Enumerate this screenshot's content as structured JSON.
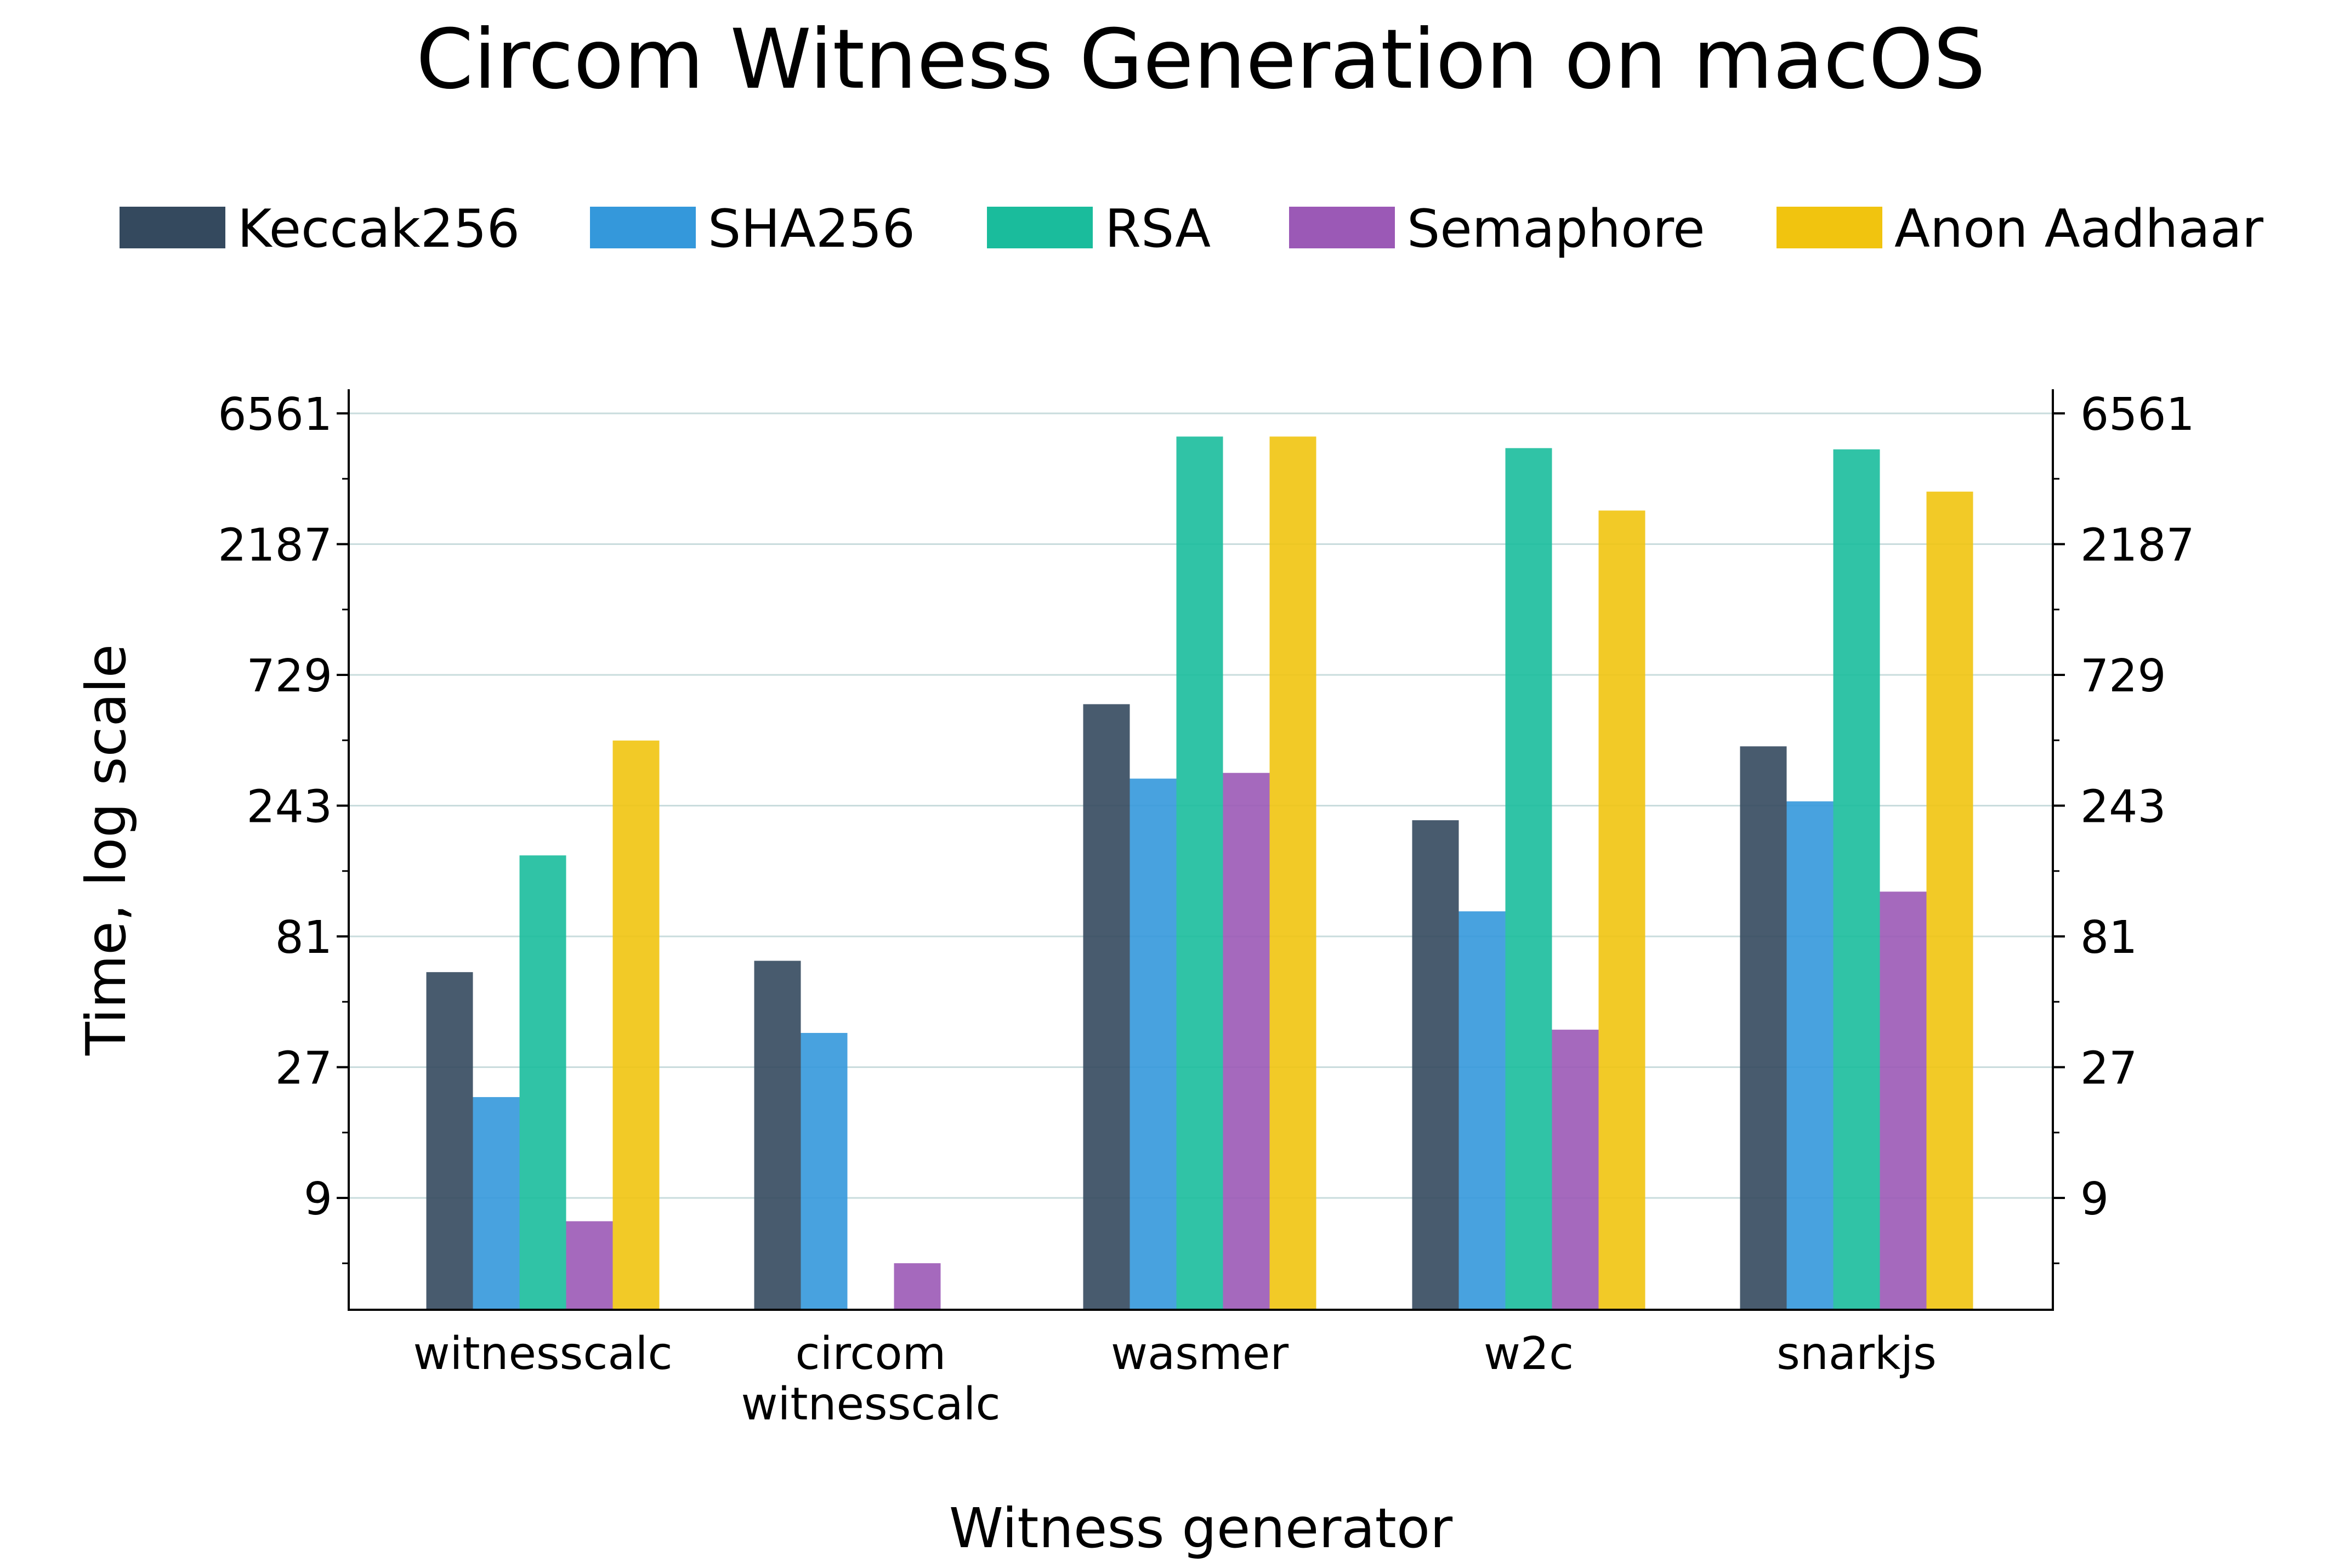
{
  "chart_data": {
    "type": "bar",
    "title": "Circom Witness Generation on macOS",
    "xlabel": "Witness generator",
    "ylabel": "Time, log scale",
    "yscale": "log3",
    "ylim": [
      2.6,
      8000
    ],
    "yticks": [
      9,
      27,
      81,
      243,
      729,
      2187,
      6561
    ],
    "ytick_labels": [
      "9",
      "27",
      "81",
      "243",
      "729",
      "2187",
      "6561"
    ],
    "right_axis": true,
    "grid": "horizontal",
    "legend_position": "top",
    "categories": [
      [
        "witnesscalc"
      ],
      [
        "circom",
        "witnesscalc"
      ],
      [
        "wasmer"
      ],
      [
        "w2c"
      ],
      [
        "snarkjs"
      ]
    ],
    "series": [
      {
        "name": "Keccak256",
        "color": "#34495e",
        "values": [
          60,
          66,
          570,
          215,
          400
        ]
      },
      {
        "name": "SHA256",
        "color": "#3498db",
        "values": [
          21,
          36,
          305,
          100,
          252
        ]
      },
      {
        "name": "RSA",
        "color": "#1abc9c",
        "values": [
          160,
          null,
          5400,
          4900,
          4850
        ]
      },
      {
        "name": "Semaphore",
        "color": "#9b59b6",
        "values": [
          7.4,
          5.2,
          320,
          37,
          118
        ]
      },
      {
        "name": "Anon Aadhaar",
        "color": "#f1c40f",
        "values": [
          420,
          null,
          5400,
          2900,
          3400
        ]
      }
    ]
  }
}
